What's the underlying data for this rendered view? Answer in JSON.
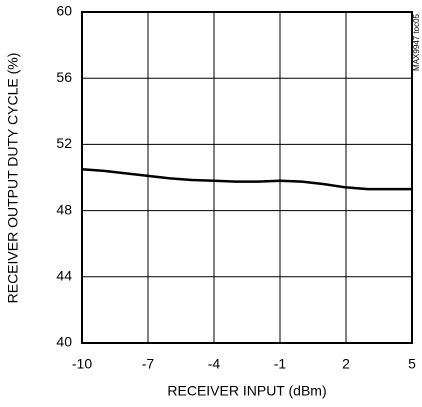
{
  "chart_data": {
    "type": "line",
    "x_label": "RECEIVER INPUT (dBm)",
    "y_label": "RECEIVER OUTPUT DUTY CYCLE (%)",
    "annotation": "MAX9947 toc05",
    "x": [
      -10,
      -9,
      -8,
      -7,
      -6,
      -5,
      -4,
      -3,
      -2,
      -1,
      0,
      1,
      2,
      3,
      4,
      5
    ],
    "series": [
      {
        "name": null,
        "color": "#000000",
        "values": [
          50.5,
          50.4,
          50.25,
          50.1,
          49.95,
          49.85,
          49.8,
          49.75,
          49.75,
          49.8,
          49.75,
          49.6,
          49.4,
          49.3,
          49.3,
          49.3
        ]
      }
    ],
    "xlim": [
      -10,
      5
    ],
    "xticks": [
      -10,
      -7,
      -4,
      -1,
      2,
      5
    ],
    "ylim": [
      40,
      60
    ],
    "yticks": [
      40,
      44,
      48,
      52,
      56,
      60
    ],
    "grid": true
  }
}
